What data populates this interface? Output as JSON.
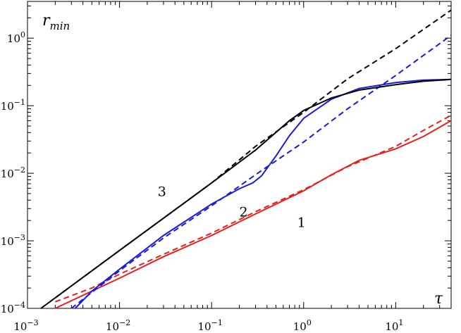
{
  "chart_data": {
    "type": "line",
    "xscale": "log",
    "yscale": "log",
    "xlim": [
      0.001,
      40
    ],
    "ylim": [
      0.0001,
      3.5
    ],
    "grid": false,
    "xlabel": "τ",
    "ylabel": "r",
    "ylabel_subscript": "min",
    "x_ticks": [
      {
        "value": 0.001,
        "base": "10",
        "exp": "−3"
      },
      {
        "value": 0.01,
        "base": "10",
        "exp": "−2"
      },
      {
        "value": 0.1,
        "base": "10",
        "exp": "−1"
      },
      {
        "value": 1,
        "base": "10",
        "exp": "0"
      },
      {
        "value": 10,
        "base": "10",
        "exp": "1"
      }
    ],
    "y_ticks": [
      {
        "value": 0.0001,
        "base": "10",
        "exp": "−4"
      },
      {
        "value": 0.001,
        "base": "10",
        "exp": "−3"
      },
      {
        "value": 0.01,
        "base": "10",
        "exp": "−2"
      },
      {
        "value": 0.1,
        "base": "10",
        "exp": "−1"
      },
      {
        "value": 1,
        "base": "10",
        "exp": "0"
      }
    ],
    "series": [
      {
        "label": "1",
        "color": "#e8201c",
        "solid": [
          [
            0.002,
            0.0001
          ],
          [
            0.005,
            0.00018
          ],
          [
            0.01,
            0.00028
          ],
          [
            0.03,
            0.00058
          ],
          [
            0.1,
            0.0012
          ],
          [
            0.3,
            0.0025
          ],
          [
            1,
            0.0055
          ],
          [
            2,
            0.0095
          ],
          [
            4,
            0.0155
          ],
          [
            10,
            0.023
          ],
          [
            20,
            0.035
          ],
          [
            40,
            0.06
          ]
        ],
        "dashed": [
          [
            0.002,
            0.000125
          ],
          [
            0.005,
            0.0002
          ],
          [
            0.01,
            0.00032
          ],
          [
            0.03,
            0.00063
          ],
          [
            0.1,
            0.0013
          ],
          [
            0.3,
            0.0027
          ],
          [
            1,
            0.0057
          ],
          [
            3,
            0.0125
          ],
          [
            10,
            0.025
          ],
          [
            20,
            0.043
          ],
          [
            40,
            0.072
          ]
        ],
        "label_at": [
          0.85,
          0.0016
        ]
      },
      {
        "label": "2",
        "color": "#1a1adb",
        "solid": [
          [
            0.0033,
            0.0001
          ],
          [
            0.005,
            0.00018
          ],
          [
            0.01,
            0.00038
          ],
          [
            0.03,
            0.0012
          ],
          [
            0.1,
            0.0035
          ],
          [
            0.2,
            0.0059
          ],
          [
            0.28,
            0.0072
          ],
          [
            0.35,
            0.0092
          ],
          [
            0.5,
            0.018
          ],
          [
            0.7,
            0.036
          ],
          [
            1,
            0.065
          ],
          [
            2,
            0.125
          ],
          [
            4,
            0.18
          ],
          [
            10,
            0.22
          ],
          [
            20,
            0.24
          ],
          [
            40,
            0.245
          ]
        ],
        "dashed": [
          [
            0.003,
            0.0001
          ],
          [
            0.01,
            0.00036
          ],
          [
            0.03,
            0.0011
          ],
          [
            0.1,
            0.0033
          ],
          [
            0.3,
            0.0095
          ],
          [
            1,
            0.029
          ],
          [
            3,
            0.09
          ],
          [
            10,
            0.28
          ],
          [
            40,
            1.1
          ]
        ],
        "label_at": [
          0.2,
          0.0023
        ]
      },
      {
        "label": "3",
        "color": "#000000",
        "solid": [
          [
            0.0014,
            0.0001
          ],
          [
            0.01,
            0.00072
          ],
          [
            0.1,
            0.0072
          ],
          [
            0.3,
            0.022
          ],
          [
            0.7,
            0.06
          ],
          [
            1,
            0.085
          ],
          [
            2,
            0.13
          ],
          [
            4,
            0.17
          ],
          [
            10,
            0.205
          ],
          [
            20,
            0.23
          ],
          [
            40,
            0.245
          ]
        ],
        "dashed": [
          [
            0.0014,
            0.0001
          ],
          [
            0.01,
            0.00072
          ],
          [
            0.1,
            0.0072
          ],
          [
            0.3,
            0.025
          ],
          [
            1,
            0.08
          ],
          [
            3,
            0.25
          ],
          [
            10,
            0.7
          ],
          [
            40,
            2.6
          ]
        ],
        "label_at": [
          0.026,
          0.0046
        ]
      }
    ]
  }
}
